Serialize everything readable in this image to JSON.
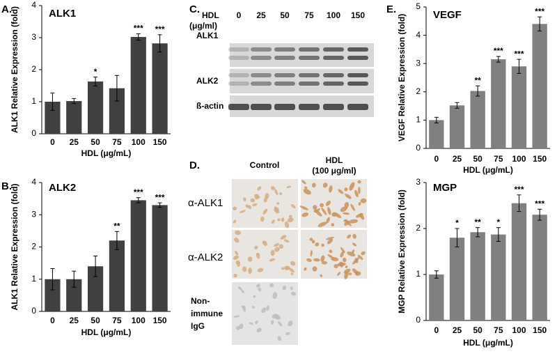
{
  "chart_data": [
    {
      "type": "bar",
      "panel": "A.",
      "title": "ALK1",
      "categories": [
        "0",
        "25",
        "50",
        "75",
        "100",
        "150"
      ],
      "values": [
        1.0,
        1.02,
        1.63,
        1.42,
        3.02,
        2.82
      ],
      "errors": [
        0.27,
        0.08,
        0.14,
        0.4,
        0.1,
        0.27
      ],
      "significance": [
        null,
        null,
        "*",
        null,
        "***",
        "***"
      ],
      "color": "#404040",
      "ylim": [
        0,
        4
      ],
      "yticks": [
        0,
        1,
        2,
        3,
        4
      ],
      "ylabel": "ALK1 Relative Expression (fold)",
      "xlabel": "HDL (μg/mL)"
    },
    {
      "type": "bar",
      "panel": "B.",
      "title": "ALK2",
      "categories": [
        "0",
        "25",
        "50",
        "75",
        "100",
        "150"
      ],
      "values": [
        1.0,
        1.0,
        1.4,
        2.2,
        3.45,
        3.3
      ],
      "errors": [
        0.33,
        0.25,
        0.32,
        0.28,
        0.08,
        0.07
      ],
      "significance": [
        null,
        null,
        null,
        "**",
        "***",
        "***"
      ],
      "color": "#404040",
      "ylim": [
        0,
        4
      ],
      "yticks": [
        0,
        1,
        2,
        3,
        4
      ],
      "ylabel": "ALK1 Relative Expression (fold)",
      "xlabel": "HDL (μg/mL)"
    },
    {
      "type": "bar",
      "panel": "E.",
      "title": "VEGF",
      "categories": [
        "0",
        "25",
        "50",
        "75",
        "100",
        "150"
      ],
      "values": [
        1.0,
        1.52,
        2.03,
        3.15,
        2.9,
        4.4
      ],
      "errors": [
        0.1,
        0.1,
        0.18,
        0.1,
        0.25,
        0.25
      ],
      "significance": [
        null,
        null,
        "**",
        "***",
        "***",
        "***"
      ],
      "color": "#808080",
      "ylim": [
        0,
        5
      ],
      "yticks": [
        0,
        1,
        2,
        3,
        4,
        5
      ],
      "ylabel": "VEGF Relative Expression (fold)",
      "xlabel": "HDL (μg/mL)"
    },
    {
      "type": "bar",
      "title": "MGP",
      "categories": [
        "0",
        "25",
        "50",
        "75",
        "100",
        "150"
      ],
      "values": [
        1.0,
        1.8,
        1.92,
        1.87,
        2.55,
        2.3
      ],
      "errors": [
        0.08,
        0.2,
        0.1,
        0.15,
        0.18,
        0.12
      ],
      "significance": [
        null,
        "*",
        "**",
        "*",
        "***",
        "***"
      ],
      "color": "#808080",
      "ylim": [
        0,
        3
      ],
      "yticks": [
        0,
        1,
        2,
        3
      ],
      "ylabel": "MGP Relative Expression (fold)",
      "xlabel": "HDL (μg/mL)"
    }
  ],
  "blot": {
    "panel": "C.",
    "header": "HDL",
    "unit": "(μg/ml)",
    "lanes": [
      "0",
      "25",
      "50",
      "75",
      "100",
      "150"
    ],
    "rows": [
      "ALK1",
      "ALK2",
      "ß-actin"
    ]
  },
  "staining": {
    "panel": "D.",
    "columns": [
      {
        "label": "Control"
      },
      {
        "label": "HDL",
        "sublabel": "(100 μg/ml)"
      }
    ],
    "rows": [
      {
        "label": "α-ALK1"
      },
      {
        "label": "α-ALK2"
      },
      {
        "label": [
          "Non-",
          "immune",
          "IgG"
        ]
      }
    ]
  }
}
